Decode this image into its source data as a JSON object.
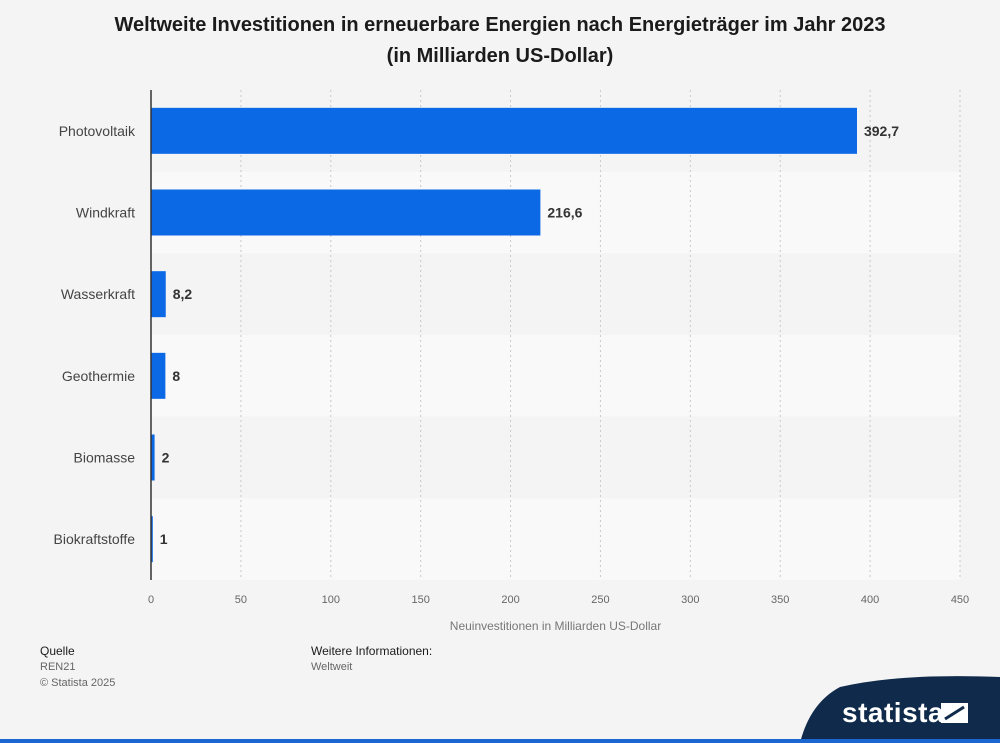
{
  "chart_data": {
    "type": "bar",
    "orientation": "horizontal",
    "title": "Weltweite Investitionen in erneuerbare Energien nach Energieträger im Jahr 2023",
    "subtitle": "(in Milliarden US-Dollar)",
    "categories": [
      "Photovoltaik",
      "Windkraft",
      "Wasserkraft",
      "Geothermie",
      "Biomasse",
      "Biokraftstoffe"
    ],
    "values": [
      392.7,
      216.6,
      8.2,
      8,
      2,
      1
    ],
    "value_labels": [
      "392,7",
      "216,6",
      "8,2",
      "8",
      "2",
      "1"
    ],
    "xlabel": "Neuinvestitionen in Milliarden US-Dollar",
    "xlim": [
      0,
      450
    ],
    "xticks": [
      0,
      50,
      100,
      150,
      200,
      250,
      300,
      350,
      400,
      450
    ],
    "grid": true,
    "bar_color": "#0b69e5"
  },
  "footer": {
    "source_heading": "Quelle",
    "source": "REN21",
    "copyright": "© Statista 2025",
    "info_heading": "Weitere Informationen:",
    "info": "Weltweit"
  },
  "brand": {
    "name": "statista",
    "color": "#0f2a4a"
  }
}
